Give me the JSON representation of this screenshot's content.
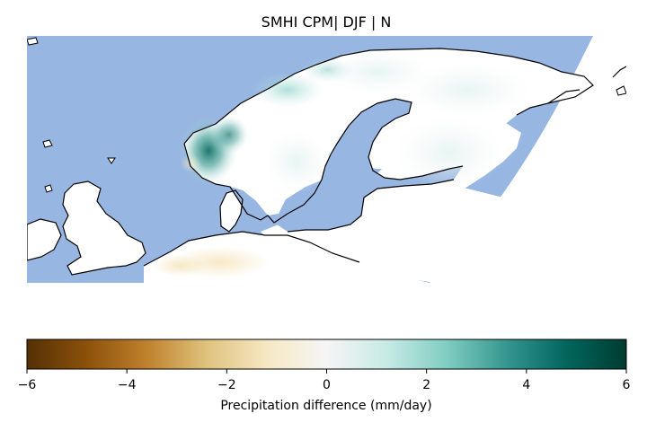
{
  "title": "SMHI CPM| DJF | N",
  "colorbar": {
    "label": "Precipitation difference (mm/day)",
    "min": -6,
    "max": 6,
    "ticks": [
      "−6",
      "−4",
      "−2",
      "0",
      "2",
      "4",
      "6"
    ],
    "tick_values": [
      -6,
      -4,
      -2,
      0,
      2,
      4,
      6
    ],
    "colormap": "BrBG",
    "stops": [
      "#543005",
      "#8c510a",
      "#bf812d",
      "#dfc27d",
      "#f6e8c3",
      "#f5f5f5",
      "#c7eae5",
      "#80cdc1",
      "#35978f",
      "#01665e",
      "#003c30"
    ]
  },
  "map": {
    "ocean_color": "#97b6e1",
    "land_color": "#ffffff",
    "coastline_color": "#000000"
  }
}
